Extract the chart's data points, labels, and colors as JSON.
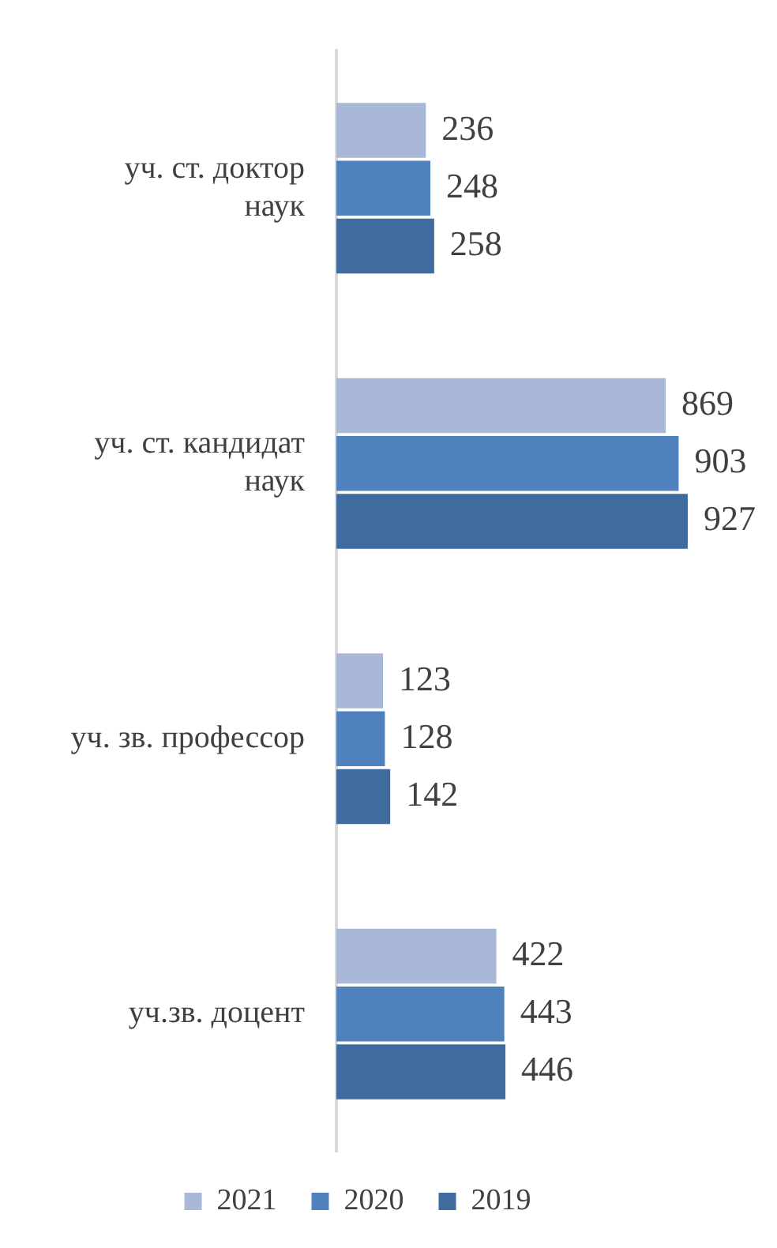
{
  "chart_data": {
    "type": "bar",
    "orientation": "horizontal",
    "categories": [
      "уч. ст. доктор наук",
      "уч. ст. кандидат наук",
      "уч. зв. профессор",
      "уч.зв. доцент"
    ],
    "series": [
      {
        "name": "2021",
        "color": "#a9b8d6",
        "values": [
          236,
          869,
          123,
          422
        ]
      },
      {
        "name": "2020",
        "color": "#4f81bd",
        "values": [
          248,
          903,
          128,
          443
        ]
      },
      {
        "name": "2019",
        "color": "#3f6b9e",
        "values": [
          258,
          927,
          142,
          446
        ]
      }
    ],
    "tick_labels": "y",
    "data_labels": true,
    "legend": "bottom"
  }
}
